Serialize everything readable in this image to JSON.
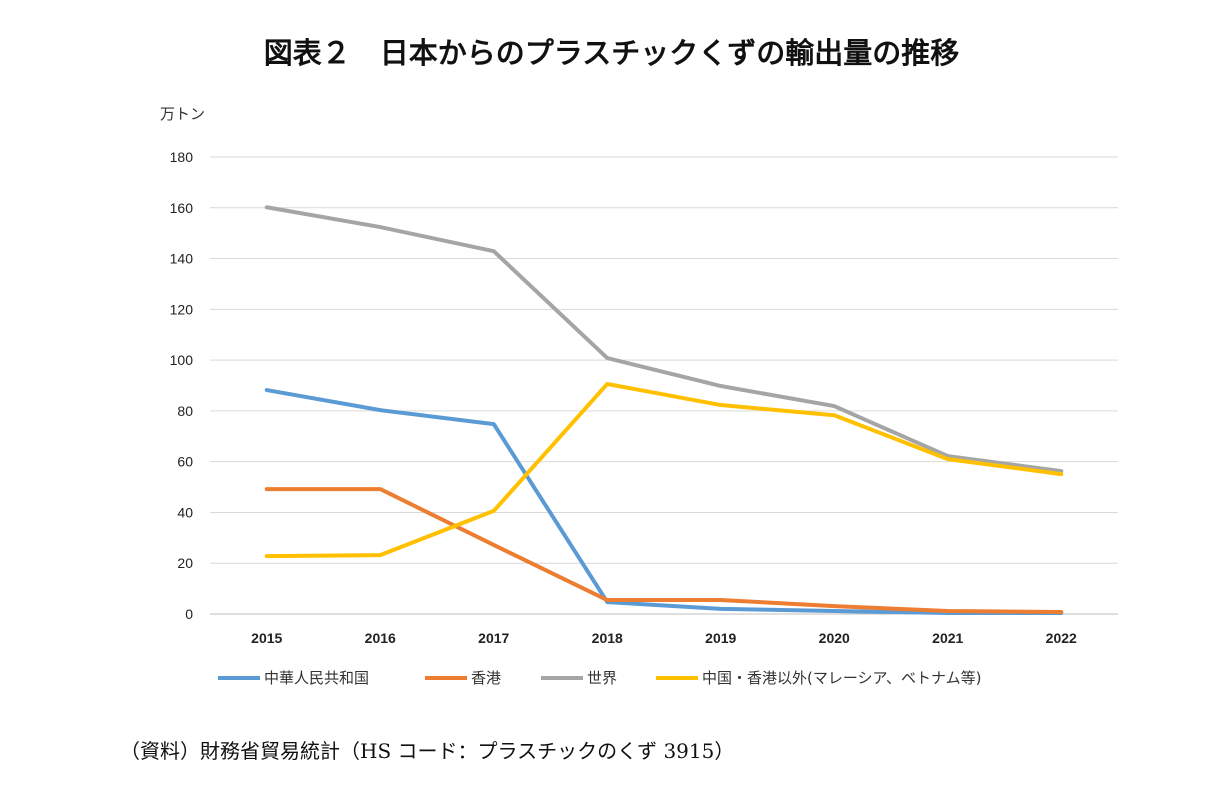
{
  "title": "図表２　日本からのプラスチックくずの輸出量の推移",
  "source": "（資料）財務省貿易統計（HS コード：プラスチックのくず 3915）",
  "chart_data": {
    "type": "line",
    "title": "図表２　日本からのプラスチックくずの輸出量の推移",
    "ylabel": "万トン",
    "xlabel": "",
    "ylim": [
      0,
      180
    ],
    "yticks": [
      0,
      20,
      40,
      60,
      80,
      100,
      120,
      140,
      160,
      180
    ],
    "grid": true,
    "legend_position": "bottom",
    "categories": [
      "2015",
      "2016",
      "2017",
      "2018",
      "2019",
      "2020",
      "2021",
      "2022"
    ],
    "series": [
      {
        "name": "中華人民共和国",
        "color": "#5B9BD5",
        "values": [
          88.2,
          80.3,
          74.8,
          4.7,
          2.0,
          1.2,
          0.4,
          0.4
        ]
      },
      {
        "name": "香港",
        "color": "#ED7D31",
        "values": [
          49.2,
          49.2,
          27.2,
          5.5,
          5.5,
          3.1,
          1.2,
          0.8
        ]
      },
      {
        "name": "世界",
        "color": "#A5A5A5",
        "values": [
          160.2,
          152.4,
          142.9,
          100.8,
          89.8,
          81.9,
          62.2,
          56.3
        ]
      },
      {
        "name": "中国・香港以外(マレーシア、ベトナム等)",
        "color": "#FFC000",
        "values": [
          22.8,
          23.2,
          40.6,
          90.6,
          82.3,
          78.3,
          61.0,
          55.1
        ]
      }
    ]
  }
}
